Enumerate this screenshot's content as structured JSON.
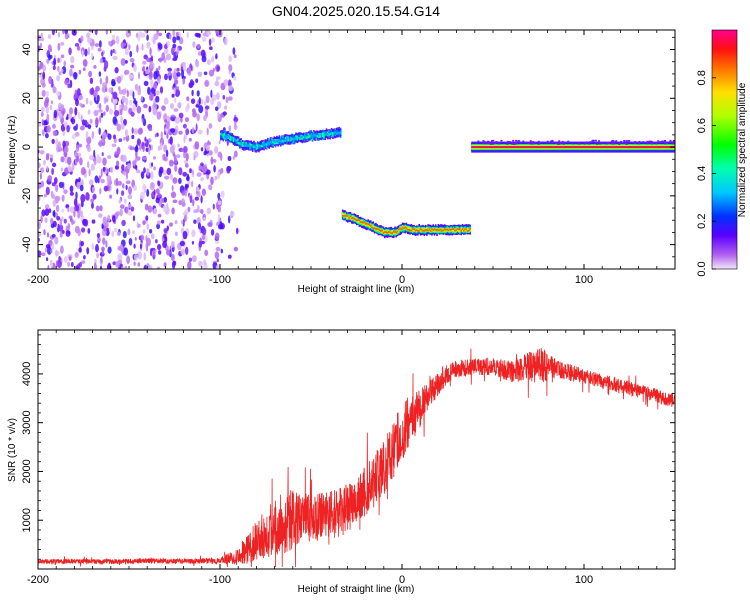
{
  "title": "GN04.2025.020.15.54.G14",
  "chart_data": [
    {
      "type": "heatmap",
      "xlabel": "Height of straight line (km)",
      "ylabel": "Frequency (Hz)",
      "xlim": [
        -200,
        150
      ],
      "ylim": [
        -50,
        48
      ],
      "x_ticks": [
        -200,
        -100,
        0,
        100
      ],
      "y_ticks": [
        -40,
        -20,
        0,
        20,
        40
      ],
      "colorbar": {
        "label": "Normalized spectral amplitude",
        "range": [
          0,
          1
        ],
        "ticks": [
          0.0,
          0.2,
          0.4,
          0.6,
          0.8
        ],
        "tick_labels": [
          "0.0",
          "0.2",
          "0.4",
          "0.6",
          "0.8"
        ]
      },
      "noise_region": {
        "x": [
          -200,
          -90
        ],
        "y": [
          -50,
          48
        ],
        "amplitude": 0.05
      },
      "tracks": [
        {
          "points": [
            [
              -100,
              5
            ],
            [
              -95,
              4
            ],
            [
              -88,
              1
            ],
            [
              -80,
              0
            ],
            [
              -72,
              2
            ],
            [
              -64,
              3
            ],
            [
              -55,
              4
            ],
            [
              -45,
              5
            ],
            [
              -34,
              6
            ]
          ],
          "amplitude": 0.3
        },
        {
          "points": [
            [
              -33,
              -28
            ],
            [
              -28,
              -29
            ],
            [
              -22,
              -31
            ],
            [
              -16,
              -33
            ],
            [
              -10,
              -35
            ],
            [
              -4,
              -35
            ],
            [
              0,
              -33
            ],
            [
              5,
              -34
            ],
            [
              12,
              -34
            ],
            [
              25,
              -34
            ],
            [
              37,
              -34
            ]
          ],
          "amplitude": 0.85
        },
        {
          "points": [
            [
              38,
              0
            ],
            [
              60,
              0
            ],
            [
              90,
              0
            ],
            [
              120,
              0
            ],
            [
              150,
              0
            ]
          ],
          "amplitude": 0.95
        }
      ]
    },
    {
      "type": "line",
      "xlabel": "Height of straight line (km)",
      "ylabel": "SNR (10 * v/v)",
      "xlim": [
        -200,
        150
      ],
      "ylim": [
        0,
        4900
      ],
      "x_ticks": [
        -200,
        -100,
        0,
        100
      ],
      "y_ticks": [
        1000,
        2000,
        3000,
        4000
      ],
      "color": "#ee2222",
      "series": [
        {
          "x": [
            -200,
            -180,
            -160,
            -140,
            -120,
            -100,
            -92,
            -85,
            -78,
            -70,
            -62,
            -55,
            -48,
            -40,
            -32,
            -25,
            -18,
            -10,
            -5,
            0,
            5,
            10,
            15,
            20,
            25,
            30,
            40,
            50,
            60,
            70,
            75,
            80,
            85,
            90,
            100,
            110,
            120,
            130,
            140,
            150
          ],
          "values": [
            150,
            160,
            150,
            170,
            160,
            170,
            250,
            400,
            650,
            850,
            1000,
            1000,
            1050,
            1100,
            1200,
            1400,
            1700,
            2100,
            2400,
            2800,
            3100,
            3300,
            3600,
            3800,
            4000,
            4100,
            4150,
            4150,
            4050,
            4150,
            4200,
            4150,
            4100,
            4050,
            3950,
            3850,
            3750,
            3650,
            3550,
            3450
          ],
          "noise": [
            50,
            50,
            50,
            50,
            50,
            60,
            150,
            300,
            450,
            600,
            650,
            550,
            500,
            500,
            500,
            500,
            550,
            600,
            600,
            600,
            500,
            400,
            300,
            250,
            200,
            180,
            180,
            180,
            220,
            300,
            400,
            300,
            200,
            180,
            150,
            150,
            150,
            150,
            150,
            150
          ]
        }
      ]
    }
  ]
}
